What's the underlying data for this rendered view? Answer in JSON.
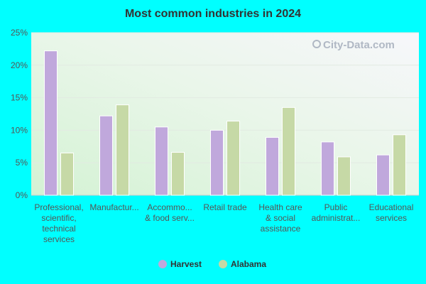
{
  "chart_data": {
    "type": "bar",
    "title": "Most common industries in 2024",
    "categories": [
      [
        "Professional,",
        "scientific,",
        "technical",
        "services"
      ],
      [
        "Manufactur..."
      ],
      [
        "Accommo...",
        "& food serv..."
      ],
      [
        "Retail trade"
      ],
      [
        "Health care",
        "& social",
        "assistance"
      ],
      [
        "Public",
        "administrat..."
      ],
      [
        "Educational",
        "services"
      ]
    ],
    "series": [
      {
        "name": "Harvest",
        "color": "#c0a8dc",
        "values": [
          22.2,
          12.2,
          10.5,
          10.0,
          8.9,
          8.2,
          6.2
        ]
      },
      {
        "name": "Alabama",
        "color": "#c6d9a6",
        "values": [
          6.5,
          13.9,
          6.6,
          11.4,
          13.5,
          5.9,
          9.3
        ]
      }
    ],
    "ylim": [
      0,
      25
    ],
    "yticks": [
      "0%",
      "5%",
      "10%",
      "15%",
      "20%",
      "25%"
    ],
    "ytick_values": [
      0,
      5,
      10,
      15,
      20,
      25
    ],
    "grid": true,
    "legend_position": "bottom-center",
    "watermark": "City-Data.com"
  }
}
